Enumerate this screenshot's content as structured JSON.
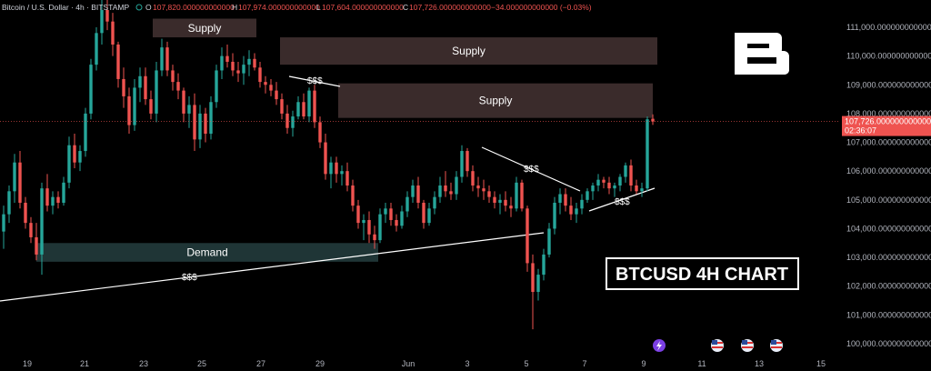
{
  "header": {
    "symbol": "Bitcoin / U.S. Dollar · 4h · BITSTAMP",
    "o_label": "O",
    "o_value": "107,820.000000000000",
    "h_label": "H",
    "h_value": "107,974.000000000000",
    "l_label": "L",
    "l_value": "107,604.000000000000",
    "c_label": "C",
    "c_value": "107,726.000000000000",
    "change": "−34.000000000000 (−0.03%)"
  },
  "price_tag": {
    "price": "107,726.000000000000",
    "countdown": "02:36:07"
  },
  "watermark": {
    "title": "BTCUSD 4H CHART"
  },
  "colors": {
    "bg": "#000000",
    "up": "#26a69a",
    "down": "#ef5350",
    "supply": "#3a2b2b",
    "demand": "#1f3536",
    "price_line": "#ef5350",
    "axis_text": "#b2b5be"
  },
  "chart_data": {
    "type": "candlestick",
    "title": "BTCUSD 4H CHART",
    "symbol": "Bitcoin / U.S. Dollar",
    "timeframe": "4h",
    "exchange": "BITSTAMP",
    "last_price": 107726,
    "ylim": [
      99800,
      112200
    ],
    "y_ticks": [
      "100,000.000000000000",
      "101,000.000000000000",
      "102,000.000000000000",
      "103,000.000000000000",
      "104,000.000000000000",
      "105,000.000000000000",
      "106,000.000000000000",
      "107,000.000000000000",
      "108,000.000000000000",
      "109,000.000000000000",
      "110,000.000000000000",
      "111,000.000000000000"
    ],
    "y_tick_values": [
      100000,
      101000,
      102000,
      103000,
      104000,
      105000,
      106000,
      107000,
      108000,
      109000,
      110000,
      111000
    ],
    "x_ticks": [
      "19",
      "21",
      "23",
      "25",
      "27",
      "29",
      "Jun",
      "3",
      "5",
      "7",
      "9",
      "11",
      "13",
      "15"
    ],
    "zones": [
      {
        "label": "Supply",
        "kind": "supply",
        "y_low": 110650,
        "y_high": 111300
      },
      {
        "label": "Supply",
        "kind": "supply",
        "y_low": 109700,
        "y_high": 110650
      },
      {
        "label": "Supply",
        "kind": "supply",
        "y_low": 107850,
        "y_high": 109050
      },
      {
        "label": "Demand",
        "kind": "demand",
        "y_low": 102850,
        "y_high": 103500
      }
    ],
    "liquidity_labels": [
      "$$$",
      "$$$",
      "$$$",
      "$$$"
    ],
    "candles": [
      {
        "o": 103900,
        "h": 104800,
        "l": 103300,
        "c": 104500
      },
      {
        "o": 104500,
        "h": 105500,
        "l": 104200,
        "c": 105300
      },
      {
        "o": 105300,
        "h": 106600,
        "l": 104900,
        "c": 106300
      },
      {
        "o": 106300,
        "h": 106700,
        "l": 104700,
        "c": 104900
      },
      {
        "o": 104900,
        "h": 105100,
        "l": 104000,
        "c": 104200
      },
      {
        "o": 104200,
        "h": 104400,
        "l": 103500,
        "c": 103700
      },
      {
        "o": 103700,
        "h": 104200,
        "l": 102900,
        "c": 103100
      },
      {
        "o": 103100,
        "h": 105600,
        "l": 102400,
        "c": 105400
      },
      {
        "o": 105400,
        "h": 105900,
        "l": 104600,
        "c": 104800
      },
      {
        "o": 104800,
        "h": 105300,
        "l": 104500,
        "c": 105100
      },
      {
        "o": 105100,
        "h": 105300,
        "l": 104700,
        "c": 104900
      },
      {
        "o": 104900,
        "h": 105800,
        "l": 104800,
        "c": 105600
      },
      {
        "o": 105600,
        "h": 107200,
        "l": 105400,
        "c": 106900
      },
      {
        "o": 106900,
        "h": 107300,
        "l": 106100,
        "c": 106300
      },
      {
        "o": 106300,
        "h": 106900,
        "l": 106000,
        "c": 106700
      },
      {
        "o": 106700,
        "h": 108200,
        "l": 106500,
        "c": 108000
      },
      {
        "o": 108000,
        "h": 109900,
        "l": 107800,
        "c": 109700
      },
      {
        "o": 109700,
        "h": 111000,
        "l": 109500,
        "c": 110800
      },
      {
        "o": 110800,
        "h": 112100,
        "l": 110400,
        "c": 111600
      },
      {
        "o": 111600,
        "h": 112200,
        "l": 110900,
        "c": 111200
      },
      {
        "o": 111200,
        "h": 111500,
        "l": 110000,
        "c": 110400
      },
      {
        "o": 110400,
        "h": 110500,
        "l": 108900,
        "c": 109200
      },
      {
        "o": 109200,
        "h": 109600,
        "l": 108200,
        "c": 108600
      },
      {
        "o": 108600,
        "h": 108900,
        "l": 107300,
        "c": 107600
      },
      {
        "o": 107600,
        "h": 109200,
        "l": 107400,
        "c": 108900
      },
      {
        "o": 108900,
        "h": 109600,
        "l": 108400,
        "c": 109300
      },
      {
        "o": 109300,
        "h": 109600,
        "l": 108300,
        "c": 108500
      },
      {
        "o": 108500,
        "h": 108800,
        "l": 107800,
        "c": 108000
      },
      {
        "o": 108000,
        "h": 109800,
        "l": 107700,
        "c": 109500
      },
      {
        "o": 109500,
        "h": 110600,
        "l": 109300,
        "c": 110300
      },
      {
        "o": 110300,
        "h": 110500,
        "l": 109300,
        "c": 109500
      },
      {
        "o": 109500,
        "h": 109700,
        "l": 108800,
        "c": 109100
      },
      {
        "o": 109100,
        "h": 109400,
        "l": 108500,
        "c": 108800
      },
      {
        "o": 108800,
        "h": 108900,
        "l": 107700,
        "c": 108000
      },
      {
        "o": 108000,
        "h": 108600,
        "l": 107500,
        "c": 108300
      },
      {
        "o": 108300,
        "h": 108700,
        "l": 106700,
        "c": 107100
      },
      {
        "o": 107100,
        "h": 108300,
        "l": 106800,
        "c": 108000
      },
      {
        "o": 108000,
        "h": 108200,
        "l": 107000,
        "c": 107300
      },
      {
        "o": 107300,
        "h": 108600,
        "l": 107100,
        "c": 108400
      },
      {
        "o": 108400,
        "h": 109700,
        "l": 108200,
        "c": 109500
      },
      {
        "o": 109500,
        "h": 110300,
        "l": 109200,
        "c": 110000
      },
      {
        "o": 110000,
        "h": 110400,
        "l": 109600,
        "c": 109800
      },
      {
        "o": 109800,
        "h": 110100,
        "l": 109300,
        "c": 109500
      },
      {
        "o": 109500,
        "h": 109800,
        "l": 109100,
        "c": 109400
      },
      {
        "o": 109400,
        "h": 110000,
        "l": 109000,
        "c": 109700
      },
      {
        "o": 109700,
        "h": 110200,
        "l": 109300,
        "c": 109900
      },
      {
        "o": 109900,
        "h": 110100,
        "l": 109500,
        "c": 109600
      },
      {
        "o": 109600,
        "h": 109800,
        "l": 108900,
        "c": 109100
      },
      {
        "o": 109100,
        "h": 109300,
        "l": 108700,
        "c": 109000
      },
      {
        "o": 109000,
        "h": 109200,
        "l": 108600,
        "c": 108800
      },
      {
        "o": 108800,
        "h": 109100,
        "l": 108300,
        "c": 108500
      },
      {
        "o": 108500,
        "h": 108700,
        "l": 107800,
        "c": 108000
      },
      {
        "o": 108000,
        "h": 108300,
        "l": 107300,
        "c": 107500
      },
      {
        "o": 107500,
        "h": 108100,
        "l": 107200,
        "c": 107900
      },
      {
        "o": 107900,
        "h": 108600,
        "l": 107800,
        "c": 108400
      },
      {
        "o": 108400,
        "h": 108700,
        "l": 107800,
        "c": 107900
      },
      {
        "o": 107900,
        "h": 108900,
        "l": 107700,
        "c": 108800
      },
      {
        "o": 108800,
        "h": 109000,
        "l": 107500,
        "c": 107700
      },
      {
        "o": 107700,
        "h": 107900,
        "l": 106800,
        "c": 107000
      },
      {
        "o": 107000,
        "h": 107300,
        "l": 105700,
        "c": 105900
      },
      {
        "o": 105900,
        "h": 106500,
        "l": 105400,
        "c": 106300
      },
      {
        "o": 106300,
        "h": 106500,
        "l": 105600,
        "c": 105900
      },
      {
        "o": 105900,
        "h": 106200,
        "l": 105500,
        "c": 106000
      },
      {
        "o": 106000,
        "h": 106300,
        "l": 105300,
        "c": 105500
      },
      {
        "o": 105500,
        "h": 105700,
        "l": 104600,
        "c": 104800
      },
      {
        "o": 104800,
        "h": 105000,
        "l": 104000,
        "c": 104200
      },
      {
        "o": 104200,
        "h": 104500,
        "l": 103600,
        "c": 104300
      },
      {
        "o": 104300,
        "h": 104600,
        "l": 103500,
        "c": 103800
      },
      {
        "o": 103800,
        "h": 104100,
        "l": 103300,
        "c": 103600
      },
      {
        "o": 103600,
        "h": 104700,
        "l": 103500,
        "c": 104500
      },
      {
        "o": 104500,
        "h": 104900,
        "l": 104200,
        "c": 104700
      },
      {
        "o": 104700,
        "h": 104900,
        "l": 104100,
        "c": 104300
      },
      {
        "o": 104300,
        "h": 104500,
        "l": 103900,
        "c": 104100
      },
      {
        "o": 104100,
        "h": 104800,
        "l": 104000,
        "c": 104600
      },
      {
        "o": 104600,
        "h": 105300,
        "l": 104400,
        "c": 105100
      },
      {
        "o": 105100,
        "h": 105700,
        "l": 104900,
        "c": 105500
      },
      {
        "o": 105500,
        "h": 105800,
        "l": 104700,
        "c": 104900
      },
      {
        "o": 104900,
        "h": 105000,
        "l": 104000,
        "c": 104200
      },
      {
        "o": 104200,
        "h": 104900,
        "l": 104100,
        "c": 104700
      },
      {
        "o": 104700,
        "h": 105300,
        "l": 104500,
        "c": 105100
      },
      {
        "o": 105100,
        "h": 105800,
        "l": 104900,
        "c": 105500
      },
      {
        "o": 105500,
        "h": 106000,
        "l": 105100,
        "c": 105300
      },
      {
        "o": 105300,
        "h": 105600,
        "l": 105000,
        "c": 105200
      },
      {
        "o": 105200,
        "h": 106000,
        "l": 105000,
        "c": 105800
      },
      {
        "o": 105800,
        "h": 106900,
        "l": 105600,
        "c": 106700
      },
      {
        "o": 106700,
        "h": 106800,
        "l": 105800,
        "c": 106000
      },
      {
        "o": 106000,
        "h": 106200,
        "l": 105300,
        "c": 105500
      },
      {
        "o": 105500,
        "h": 105800,
        "l": 105100,
        "c": 105400
      },
      {
        "o": 105400,
        "h": 105700,
        "l": 105000,
        "c": 105300
      },
      {
        "o": 105300,
        "h": 105500,
        "l": 104900,
        "c": 105100
      },
      {
        "o": 105100,
        "h": 105300,
        "l": 104700,
        "c": 104900
      },
      {
        "o": 104900,
        "h": 105200,
        "l": 104500,
        "c": 105000
      },
      {
        "o": 105000,
        "h": 105300,
        "l": 104600,
        "c": 104800
      },
      {
        "o": 104800,
        "h": 105100,
        "l": 104400,
        "c": 104700
      },
      {
        "o": 104700,
        "h": 105800,
        "l": 104600,
        "c": 105600
      },
      {
        "o": 105600,
        "h": 105700,
        "l": 104600,
        "c": 104700
      },
      {
        "o": 104700,
        "h": 104800,
        "l": 102500,
        "c": 102800
      },
      {
        "o": 102800,
        "h": 103100,
        "l": 100500,
        "c": 101800
      },
      {
        "o": 101800,
        "h": 102600,
        "l": 101500,
        "c": 102400
      },
      {
        "o": 102400,
        "h": 103300,
        "l": 102200,
        "c": 103100
      },
      {
        "o": 103100,
        "h": 104200,
        "l": 103000,
        "c": 104000
      },
      {
        "o": 104000,
        "h": 105100,
        "l": 103800,
        "c": 104900
      },
      {
        "o": 104900,
        "h": 105400,
        "l": 104500,
        "c": 105200
      },
      {
        "o": 105200,
        "h": 105400,
        "l": 104600,
        "c": 104800
      },
      {
        "o": 104800,
        "h": 105100,
        "l": 104300,
        "c": 104500
      },
      {
        "o": 104500,
        "h": 104900,
        "l": 104200,
        "c": 104700
      },
      {
        "o": 104700,
        "h": 105200,
        "l": 104500,
        "c": 105000
      },
      {
        "o": 105000,
        "h": 105400,
        "l": 104900,
        "c": 105300
      },
      {
        "o": 105300,
        "h": 105600,
        "l": 105000,
        "c": 105500
      },
      {
        "o": 105500,
        "h": 105900,
        "l": 105300,
        "c": 105700
      },
      {
        "o": 105700,
        "h": 105800,
        "l": 105400,
        "c": 105600
      },
      {
        "o": 105600,
        "h": 105800,
        "l": 105200,
        "c": 105400
      },
      {
        "o": 105400,
        "h": 105600,
        "l": 105100,
        "c": 105500
      },
      {
        "o": 105500,
        "h": 105900,
        "l": 105300,
        "c": 105800
      },
      {
        "o": 105800,
        "h": 106300,
        "l": 105600,
        "c": 106200
      },
      {
        "o": 106200,
        "h": 106400,
        "l": 105300,
        "c": 105500
      },
      {
        "o": 105500,
        "h": 105700,
        "l": 105200,
        "c": 105300
      },
      {
        "o": 105300,
        "h": 105600,
        "l": 105100,
        "c": 105400
      },
      {
        "o": 105400,
        "h": 107900,
        "l": 105300,
        "c": 107800
      },
      {
        "o": 107820,
        "h": 107974,
        "l": 107604,
        "c": 107726
      }
    ]
  }
}
